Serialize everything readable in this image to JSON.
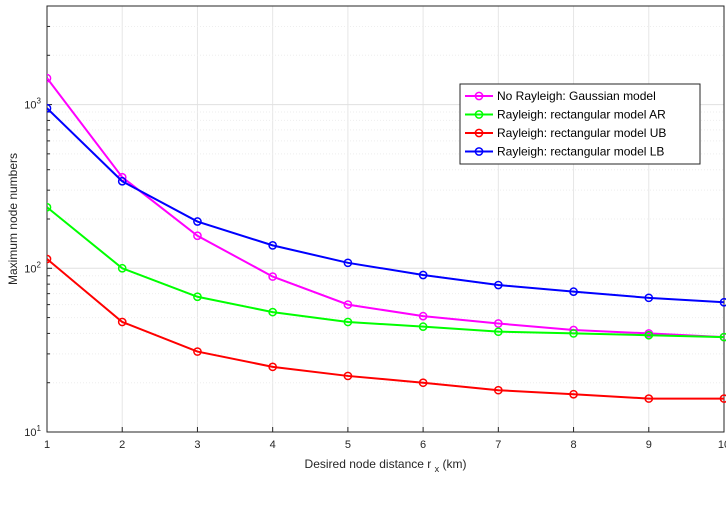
{
  "chart_data": {
    "type": "line",
    "title": "",
    "xlabel": "Desired node distance r",
    "xlabel_subscript": "x",
    "xlabel_suffix": " (km)",
    "ylabel": "Maximum node numbers",
    "x": [
      1,
      2,
      3,
      4,
      5,
      6,
      7,
      8,
      9,
      10
    ],
    "xlim": [
      1,
      10
    ],
    "ylim": [
      10,
      4000
    ],
    "yscale": "log",
    "grid": true,
    "legend_position": "upper-right",
    "xticks": [
      "1",
      "2",
      "3",
      "4",
      "5",
      "6",
      "7",
      "8",
      "9",
      "10"
    ],
    "yticks": [
      {
        "value": 10,
        "base": "10",
        "exp": "1"
      },
      {
        "value": 100,
        "base": "10",
        "exp": "2"
      },
      {
        "value": 1000,
        "base": "10",
        "exp": "3"
      }
    ],
    "series": [
      {
        "name": "No Rayleigh: Gaussian model",
        "color": "#ff00ff",
        "values": [
          1450,
          360,
          158,
          89,
          60,
          51,
          46,
          42,
          40,
          38
        ]
      },
      {
        "name": "Rayleigh: rectangular model AR",
        "color": "#00ff00",
        "values": [
          236,
          100,
          67,
          54,
          47,
          44,
          41,
          40,
          39,
          38
        ]
      },
      {
        "name": "Rayleigh: rectangular model UB",
        "color": "#ff0000",
        "values": [
          114,
          47,
          31,
          25,
          22,
          20,
          18,
          17,
          16,
          16
        ]
      },
      {
        "name": "Rayleigh: rectangular model LB",
        "color": "#0000ff",
        "values": [
          950,
          340,
          193,
          138,
          108,
          91,
          79,
          72,
          66,
          62
        ]
      }
    ]
  }
}
